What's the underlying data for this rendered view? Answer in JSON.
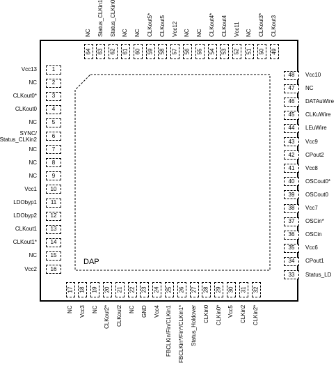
{
  "dap_label": "DAP",
  "pins_left": [
    {
      "num": "1",
      "name": "Vcc13"
    },
    {
      "num": "2",
      "name": "NC"
    },
    {
      "num": "3",
      "name": "CLKout0*"
    },
    {
      "num": "4",
      "name": "CLKout0"
    },
    {
      "num": "5",
      "name": "NC"
    },
    {
      "num": "6",
      "name": "SYNC/\nStatus_CLKin2"
    },
    {
      "num": "7",
      "name": "NC"
    },
    {
      "num": "8",
      "name": "NC"
    },
    {
      "num": "9",
      "name": "NC"
    },
    {
      "num": "10",
      "name": "Vcc1"
    },
    {
      "num": "11",
      "name": "LDObyp1"
    },
    {
      "num": "12",
      "name": "LDObyp2"
    },
    {
      "num": "13",
      "name": "CLKout1"
    },
    {
      "num": "14",
      "name": "CLKout1*"
    },
    {
      "num": "15",
      "name": "NC"
    },
    {
      "num": "16",
      "name": "Vcc2"
    }
  ],
  "pins_bottom": [
    {
      "num": "17",
      "name": "NC"
    },
    {
      "num": "18",
      "name": "Vcc3"
    },
    {
      "num": "19",
      "name": "NC"
    },
    {
      "num": "20",
      "name": "CLKout2*"
    },
    {
      "num": "21",
      "name": "CLKout2"
    },
    {
      "num": "22",
      "name": "NC"
    },
    {
      "num": "23",
      "name": "GND"
    },
    {
      "num": "24",
      "name": "Vcc4"
    },
    {
      "num": "25",
      "name": "FBCLKin/Fin/CLKin1"
    },
    {
      "num": "26",
      "name": "FBCLKin*/Fin*/CLKin1*"
    },
    {
      "num": "27",
      "name": "Status_Holdover"
    },
    {
      "num": "28",
      "name": "CLKin0"
    },
    {
      "num": "29",
      "name": "CLKin0*"
    },
    {
      "num": "30",
      "name": "Vcc5"
    },
    {
      "num": "31",
      "name": "CLKin2"
    },
    {
      "num": "32",
      "name": "CLKin2*"
    }
  ],
  "pins_right": [
    {
      "num": "33",
      "name": "Status_LD"
    },
    {
      "num": "34",
      "name": "CPout1"
    },
    {
      "num": "35",
      "name": "Vcc6"
    },
    {
      "num": "36",
      "name": "OSCin"
    },
    {
      "num": "37",
      "name": "OSCin*"
    },
    {
      "num": "38",
      "name": "Vcc7"
    },
    {
      "num": "39",
      "name": "OSCout0"
    },
    {
      "num": "40",
      "name": "OSCout0*"
    },
    {
      "num": "41",
      "name": "Vcc8"
    },
    {
      "num": "42",
      "name": "CPout2"
    },
    {
      "num": "43",
      "name": "Vcc9"
    },
    {
      "num": "44",
      "name": "LEuWire"
    },
    {
      "num": "45",
      "name": "CLKuWire"
    },
    {
      "num": "46",
      "name": "DATAuWire"
    },
    {
      "num": "47",
      "name": "NC"
    },
    {
      "num": "48",
      "name": "Vcc10"
    }
  ],
  "pins_top": [
    {
      "num": "49",
      "name": "CLKout3"
    },
    {
      "num": "50",
      "name": "CLKout3*"
    },
    {
      "num": "51",
      "name": "NC"
    },
    {
      "num": "52",
      "name": "Vcc11"
    },
    {
      "num": "53",
      "name": "CLKout4"
    },
    {
      "num": "54",
      "name": "CLKout4*"
    },
    {
      "num": "55",
      "name": "NC"
    },
    {
      "num": "56",
      "name": "NC"
    },
    {
      "num": "57",
      "name": "Vcc12"
    },
    {
      "num": "58",
      "name": "CLKout5"
    },
    {
      "num": "59",
      "name": "CLKout5*"
    },
    {
      "num": "60",
      "name": "NC"
    },
    {
      "num": "61",
      "name": "NC"
    },
    {
      "num": "62",
      "name": "Status_CLKin0"
    },
    {
      "num": "63",
      "name": "Status_CLKin1"
    },
    {
      "num": "64",
      "name": "NC"
    }
  ]
}
